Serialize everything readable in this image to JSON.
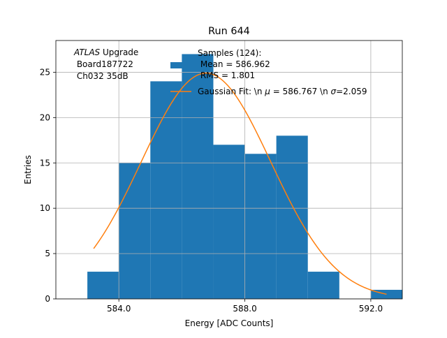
{
  "chart_data": {
    "type": "bar",
    "title": "Run 644",
    "xlabel": "Energy [ADC Counts]",
    "ylabel": "Entries",
    "xlim": [
      582.0,
      593.0
    ],
    "ylim": [
      0,
      28.5
    ],
    "grid": true,
    "x_ticks": [
      584.0,
      588.0,
      592.0
    ],
    "x_tick_labels": [
      "584.0",
      "588.0",
      "592.0"
    ],
    "y_ticks": [
      0,
      5,
      10,
      15,
      20,
      25
    ],
    "y_tick_labels": [
      "0",
      "5",
      "10",
      "15",
      "20",
      "25"
    ],
    "histogram": {
      "bin_edges": [
        583.0,
        584.0,
        585.0,
        586.0,
        587.0,
        588.0,
        589.0,
        590.0,
        591.0,
        592.0,
        593.0
      ],
      "counts": [
        3,
        15,
        24,
        27,
        17,
        16,
        18,
        3,
        0,
        1
      ],
      "color": "#1f77b4"
    },
    "gaussian_fit": {
      "mu": 586.767,
      "sigma": 2.059,
      "amplitude": 24.9,
      "x_range": [
        583.2,
        592.5
      ],
      "color": "#ff7f0e"
    },
    "annotation": {
      "italic": "ATLAS",
      "rest": " Upgrade",
      "line2": " Board187722",
      "line3": " Ch032 35dB"
    },
    "legend": {
      "position": "top-right",
      "hist_label_lines": [
        "Samples (124):",
        " Mean = 586.962",
        " RMS = 1.801"
      ],
      "fit_label_prefix": "Gaussian Fit: \\n ",
      "fit_mu_label": "μ",
      "fit_mid": " = 586.767 \\n ",
      "fit_sigma_label": "σ",
      "fit_suffix": "=2.059"
    }
  }
}
